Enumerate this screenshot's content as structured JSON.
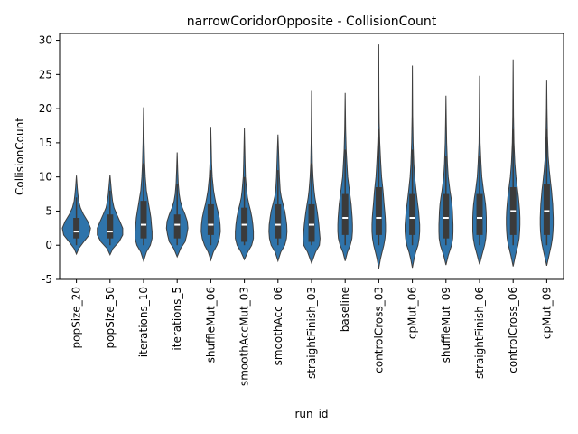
{
  "chart_data": {
    "type": "violin",
    "title": "narrowCoridorOpposite - CollisionCount",
    "xlabel": "run_id",
    "ylabel": "CollisionCount",
    "ylim": [
      -5,
      31
    ],
    "yticks": [
      -5,
      0,
      5,
      10,
      15,
      20,
      25,
      30
    ],
    "color": "#2f74ab",
    "inner_color": "#3b3b3b",
    "median_color": "#ffffff",
    "grid": false,
    "legend": "none",
    "categories": [
      "popSize_20",
      "popSize_50",
      "iterations_10",
      "iterations_5",
      "shuffleMut_06",
      "smoothAccMut_03",
      "smoothAcc_06",
      "straightFinish_03",
      "baseline",
      "controlCross_03",
      "cpMut_06",
      "shuffleMut_09",
      "straightFinish_06",
      "controlCross_06",
      "cpMut_09"
    ],
    "violins": [
      {
        "min": -1.3,
        "max": 10.2,
        "q1": 1,
        "median": 2,
        "q3": 4,
        "wlo": 0,
        "whi": 7,
        "profile": [
          [
            -1.3,
            0
          ],
          [
            -0.5,
            0.08
          ],
          [
            0.5,
            0.26
          ],
          [
            1.5,
            0.45
          ],
          [
            2.5,
            0.5
          ],
          [
            3.5,
            0.4
          ],
          [
            4.5,
            0.25
          ],
          [
            5.5,
            0.14
          ],
          [
            6.5,
            0.08
          ],
          [
            7.5,
            0.05
          ],
          [
            8.5,
            0.03
          ],
          [
            10.2,
            0
          ]
        ]
      },
      {
        "min": -1.4,
        "max": 10.3,
        "q1": 1,
        "median": 2,
        "q3": 4.5,
        "wlo": 0,
        "whi": 8,
        "profile": [
          [
            -1.4,
            0
          ],
          [
            -0.5,
            0.1
          ],
          [
            0.5,
            0.32
          ],
          [
            1.5,
            0.45
          ],
          [
            2.5,
            0.45
          ],
          [
            3.5,
            0.35
          ],
          [
            4.5,
            0.24
          ],
          [
            5.5,
            0.14
          ],
          [
            6.5,
            0.09
          ],
          [
            7.5,
            0.06
          ],
          [
            8.5,
            0.04
          ],
          [
            10.3,
            0
          ]
        ]
      },
      {
        "min": -2.3,
        "max": 20.2,
        "q1": 1,
        "median": 3,
        "q3": 6.5,
        "wlo": 0,
        "whi": 12,
        "profile": [
          [
            -2.3,
            0
          ],
          [
            -1,
            0.1
          ],
          [
            0,
            0.24
          ],
          [
            1,
            0.3
          ],
          [
            2,
            0.3
          ],
          [
            3,
            0.28
          ],
          [
            4,
            0.26
          ],
          [
            5,
            0.22
          ],
          [
            6,
            0.18
          ],
          [
            7,
            0.14
          ],
          [
            8,
            0.1
          ],
          [
            10,
            0.06
          ],
          [
            12,
            0.04
          ],
          [
            15,
            0.02
          ],
          [
            18,
            0.01
          ],
          [
            20.2,
            0
          ]
        ]
      },
      {
        "min": -1.7,
        "max": 13.6,
        "q1": 1,
        "median": 3,
        "q3": 4.5,
        "wlo": 0,
        "whi": 9,
        "profile": [
          [
            -1.7,
            0
          ],
          [
            -0.5,
            0.12
          ],
          [
            0.5,
            0.28
          ],
          [
            1.5,
            0.34
          ],
          [
            2.5,
            0.38
          ],
          [
            3.5,
            0.36
          ],
          [
            4.5,
            0.28
          ],
          [
            5.5,
            0.18
          ],
          [
            6.5,
            0.11
          ],
          [
            7.5,
            0.07
          ],
          [
            9,
            0.04
          ],
          [
            11,
            0.02
          ],
          [
            13.6,
            0
          ]
        ]
      },
      {
        "min": -2.2,
        "max": 17.2,
        "q1": 1.5,
        "median": 3,
        "q3": 6,
        "wlo": 0,
        "whi": 11,
        "profile": [
          [
            -2.2,
            0
          ],
          [
            -1,
            0.09
          ],
          [
            0,
            0.22
          ],
          [
            1,
            0.3
          ],
          [
            2,
            0.34
          ],
          [
            3,
            0.33
          ],
          [
            4,
            0.3
          ],
          [
            5,
            0.25
          ],
          [
            6,
            0.19
          ],
          [
            7,
            0.14
          ],
          [
            8,
            0.1
          ],
          [
            10,
            0.05
          ],
          [
            12,
            0.03
          ],
          [
            14.5,
            0.015
          ],
          [
            17.2,
            0
          ]
        ]
      },
      {
        "min": -2.1,
        "max": 17.1,
        "q1": 0.5,
        "median": 3,
        "q3": 5.5,
        "wlo": 0,
        "whi": 10,
        "profile": [
          [
            -2.1,
            0
          ],
          [
            -1,
            0.12
          ],
          [
            0,
            0.26
          ],
          [
            1,
            0.32
          ],
          [
            2,
            0.32
          ],
          [
            3,
            0.3
          ],
          [
            4,
            0.27
          ],
          [
            5,
            0.22
          ],
          [
            6,
            0.16
          ],
          [
            7,
            0.11
          ],
          [
            8,
            0.08
          ],
          [
            10,
            0.04
          ],
          [
            12,
            0.025
          ],
          [
            14.5,
            0.012
          ],
          [
            17.1,
            0
          ]
        ]
      },
      {
        "min": -2.3,
        "max": 16.2,
        "q1": 1,
        "median": 3,
        "q3": 6,
        "wlo": 0,
        "whi": 11,
        "profile": [
          [
            -2.3,
            0
          ],
          [
            -1,
            0.1
          ],
          [
            0,
            0.24
          ],
          [
            1,
            0.3
          ],
          [
            2,
            0.32
          ],
          [
            3,
            0.31
          ],
          [
            4,
            0.28
          ],
          [
            5,
            0.24
          ],
          [
            6,
            0.18
          ],
          [
            7,
            0.12
          ],
          [
            8,
            0.08
          ],
          [
            10,
            0.05
          ],
          [
            12,
            0.035
          ],
          [
            14,
            0.02
          ],
          [
            16.2,
            0
          ]
        ]
      },
      {
        "min": -2.6,
        "max": 22.6,
        "q1": 0.5,
        "median": 3,
        "q3": 6,
        "wlo": 0,
        "whi": 12,
        "profile": [
          [
            -2.6,
            0
          ],
          [
            -1,
            0.14
          ],
          [
            0,
            0.28
          ],
          [
            1,
            0.3
          ],
          [
            2,
            0.28
          ],
          [
            3,
            0.26
          ],
          [
            4,
            0.23
          ],
          [
            5,
            0.2
          ],
          [
            6,
            0.16
          ],
          [
            7,
            0.12
          ],
          [
            8,
            0.09
          ],
          [
            10,
            0.05
          ],
          [
            12,
            0.03
          ],
          [
            15,
            0.015
          ],
          [
            19,
            0.008
          ],
          [
            22.6,
            0
          ]
        ]
      },
      {
        "min": -2.3,
        "max": 22.3,
        "q1": 1.5,
        "median": 4,
        "q3": 7.5,
        "wlo": 0,
        "whi": 14,
        "profile": [
          [
            -2.3,
            0
          ],
          [
            -1,
            0.08
          ],
          [
            0,
            0.18
          ],
          [
            1,
            0.24
          ],
          [
            2,
            0.26
          ],
          [
            3,
            0.26
          ],
          [
            4,
            0.25
          ],
          [
            5,
            0.23
          ],
          [
            6,
            0.21
          ],
          [
            7,
            0.18
          ],
          [
            8,
            0.15
          ],
          [
            10,
            0.09
          ],
          [
            12,
            0.06
          ],
          [
            14,
            0.035
          ],
          [
            17,
            0.015
          ],
          [
            22.3,
            0
          ]
        ]
      },
      {
        "min": -3.4,
        "max": 29.4,
        "q1": 1.5,
        "median": 4,
        "q3": 8.5,
        "wlo": 0,
        "whi": 17,
        "profile": [
          [
            -3.4,
            0
          ],
          [
            -2,
            0.06
          ],
          [
            -1,
            0.12
          ],
          [
            0,
            0.18
          ],
          [
            1,
            0.22
          ],
          [
            2,
            0.24
          ],
          [
            3,
            0.24
          ],
          [
            4,
            0.23
          ],
          [
            5,
            0.21
          ],
          [
            6,
            0.19
          ],
          [
            7,
            0.17
          ],
          [
            8,
            0.15
          ],
          [
            10,
            0.1
          ],
          [
            12,
            0.07
          ],
          [
            15,
            0.035
          ],
          [
            18,
            0.015
          ],
          [
            22,
            0.008
          ],
          [
            29.4,
            0
          ]
        ]
      },
      {
        "min": -3.3,
        "max": 26.3,
        "q1": 1.5,
        "median": 4,
        "q3": 7.5,
        "wlo": 0,
        "whi": 14,
        "profile": [
          [
            -3.3,
            0
          ],
          [
            -2,
            0.06
          ],
          [
            -1,
            0.12
          ],
          [
            0,
            0.2
          ],
          [
            1,
            0.24
          ],
          [
            2,
            0.26
          ],
          [
            3,
            0.26
          ],
          [
            4,
            0.24
          ],
          [
            5,
            0.22
          ],
          [
            6,
            0.19
          ],
          [
            7,
            0.16
          ],
          [
            8,
            0.13
          ],
          [
            10,
            0.08
          ],
          [
            12,
            0.05
          ],
          [
            15,
            0.025
          ],
          [
            19,
            0.01
          ],
          [
            26.3,
            0
          ]
        ]
      },
      {
        "min": -2.9,
        "max": 21.9,
        "q1": 1,
        "median": 4,
        "q3": 7.5,
        "wlo": 0,
        "whi": 13,
        "profile": [
          [
            -2.9,
            0
          ],
          [
            -1.5,
            0.08
          ],
          [
            0,
            0.2
          ],
          [
            1,
            0.24
          ],
          [
            2,
            0.25
          ],
          [
            3,
            0.25
          ],
          [
            4,
            0.24
          ],
          [
            5,
            0.23
          ],
          [
            6,
            0.21
          ],
          [
            7,
            0.18
          ],
          [
            8,
            0.14
          ],
          [
            10,
            0.08
          ],
          [
            12,
            0.05
          ],
          [
            15,
            0.025
          ],
          [
            18,
            0.012
          ],
          [
            21.9,
            0
          ]
        ]
      },
      {
        "min": -2.8,
        "max": 24.8,
        "q1": 1.5,
        "median": 4,
        "q3": 7.5,
        "wlo": 0,
        "whi": 13,
        "profile": [
          [
            -2.8,
            0
          ],
          [
            -1.5,
            0.08
          ],
          [
            0,
            0.18
          ],
          [
            1,
            0.22
          ],
          [
            2,
            0.24
          ],
          [
            3,
            0.24
          ],
          [
            4,
            0.24
          ],
          [
            5,
            0.23
          ],
          [
            6,
            0.21
          ],
          [
            7,
            0.18
          ],
          [
            8,
            0.14
          ],
          [
            10,
            0.08
          ],
          [
            12,
            0.05
          ],
          [
            15,
            0.02
          ],
          [
            19,
            0.01
          ],
          [
            24.8,
            0
          ]
        ]
      },
      {
        "min": -3.1,
        "max": 27.2,
        "q1": 1.5,
        "median": 5,
        "q3": 8.5,
        "wlo": 0,
        "whi": 17,
        "profile": [
          [
            -3.1,
            0
          ],
          [
            -1.5,
            0.08
          ],
          [
            0,
            0.17
          ],
          [
            1,
            0.21
          ],
          [
            2,
            0.23
          ],
          [
            3,
            0.24
          ],
          [
            4,
            0.24
          ],
          [
            5,
            0.23
          ],
          [
            6,
            0.21
          ],
          [
            7,
            0.19
          ],
          [
            8,
            0.16
          ],
          [
            10,
            0.1
          ],
          [
            12,
            0.06
          ],
          [
            15,
            0.03
          ],
          [
            19,
            0.012
          ],
          [
            27.2,
            0
          ]
        ]
      },
      {
        "min": -3.0,
        "max": 24.1,
        "q1": 1.5,
        "median": 5,
        "q3": 9,
        "wlo": 0,
        "whi": 17,
        "profile": [
          [
            -3.0,
            0
          ],
          [
            -1.5,
            0.08
          ],
          [
            0,
            0.16
          ],
          [
            1,
            0.2
          ],
          [
            2,
            0.22
          ],
          [
            3,
            0.23
          ],
          [
            4,
            0.23
          ],
          [
            5,
            0.22
          ],
          [
            6,
            0.21
          ],
          [
            7,
            0.19
          ],
          [
            8,
            0.17
          ],
          [
            9,
            0.14
          ],
          [
            11,
            0.09
          ],
          [
            13,
            0.05
          ],
          [
            16,
            0.025
          ],
          [
            20,
            0.01
          ],
          [
            24.1,
            0
          ]
        ]
      }
    ]
  }
}
